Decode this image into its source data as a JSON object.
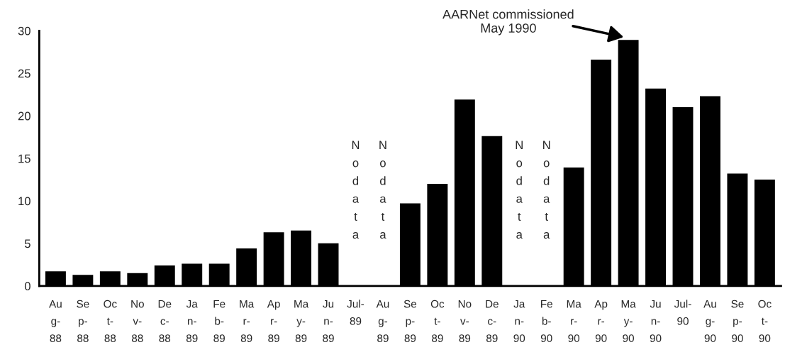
{
  "chart_data": {
    "type": "bar",
    "categories": [
      "Au\ng-\n88",
      "Se\np-\n88",
      "Oc\nt-\n88",
      "No\nv-\n88",
      "De\nc-\n88",
      "Ja\nn-\n89",
      "Fe\nb-\n89",
      "Ma\nr-\n89",
      "Ap\nr-\n89",
      "Ma\ny-\n89",
      "Ju\nn-\n89",
      "Jul-\n89",
      "Au\ng-\n89",
      "Se\np-\n89",
      "Oc\nt-\n89",
      "No\nv-\n89",
      "De\nc-\n89",
      "Ja\nn-\n90",
      "Fe\nb-\n90",
      "Ma\nr-\n90",
      "Ap\nr-\n90",
      "Ma\ny-\n90",
      "Ju\nn-\n90",
      "Jul-\n90",
      "Au\ng-\n90",
      "Se\np-\n90",
      "Oc\nt-\n90"
    ],
    "values": [
      1.6,
      1.2,
      1.6,
      1.4,
      2.3,
      2.5,
      2.5,
      4.3,
      6.2,
      6.4,
      4.9,
      null,
      null,
      9.6,
      11.9,
      21.8,
      17.5,
      null,
      null,
      13.8,
      26.5,
      28.8,
      23.1,
      20.9,
      22.2,
      13.1,
      12.4
    ],
    "color": "#000000",
    "ylim": [
      0,
      30
    ],
    "yticks": [
      0,
      5,
      10,
      15,
      20,
      25,
      30
    ],
    "grid": false,
    "legend": false,
    "annotations": [
      "N\no\nd\na\nt\na",
      "N\no\nd\na\nt\na",
      "N\no\nd\na\nt\na",
      "N\no\nd\na\nt\na",
      "AARNet commissioned\nMay 1990"
    ]
  }
}
